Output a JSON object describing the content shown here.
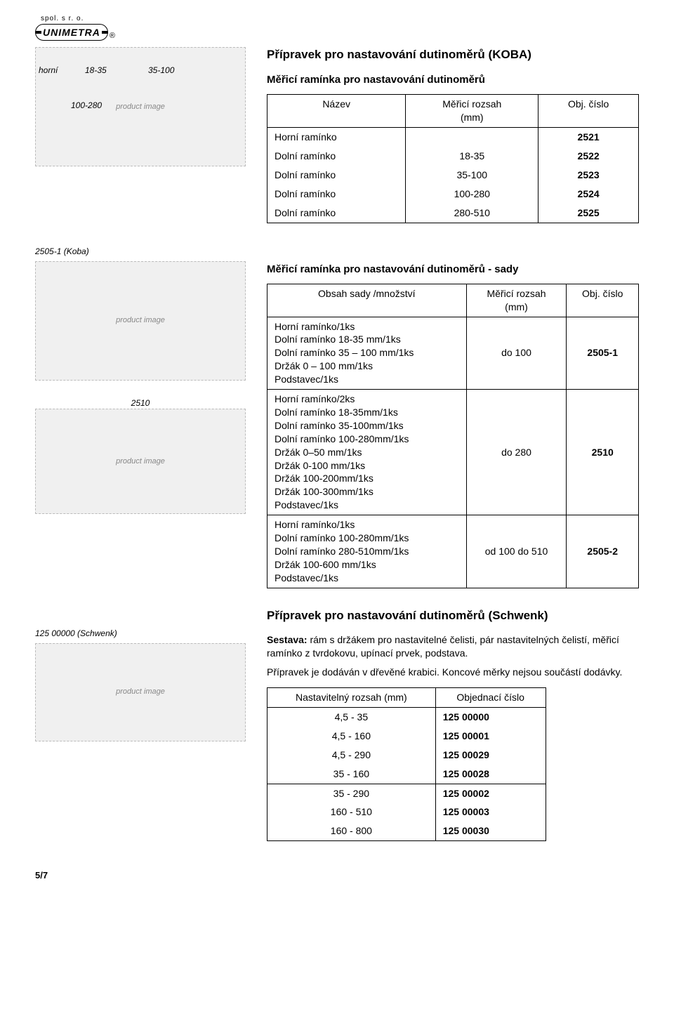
{
  "logo": {
    "top": "spol. s r. o.",
    "main": "UNIMETRA",
    "reg": "®"
  },
  "image_labels": {
    "horni": "horní",
    "r1": "18-35",
    "r2": "35-100",
    "r3": "100-280"
  },
  "section1": {
    "title": "Přípravek pro nastavování dutinoměrů (KOBA)",
    "subtitle": "Měřicí ramínka pro nastavování dutinoměrů",
    "head": {
      "c1": "Název",
      "c2a": "Měřicí rozsah",
      "c2b": "(mm)",
      "c3": "Obj. číslo"
    },
    "rows": [
      {
        "name": "Horní ramínko",
        "range": "",
        "num": "2521"
      },
      {
        "name": "Dolní ramínko",
        "range": "18-35",
        "num": "2522"
      },
      {
        "name": "Dolní ramínko",
        "range": "35-100",
        "num": "2523"
      },
      {
        "name": "Dolní ramínko",
        "range": "100-280",
        "num": "2524"
      },
      {
        "name": "Dolní ramínko",
        "range": "280-510",
        "num": "2525"
      }
    ]
  },
  "section2": {
    "caption1": "2505-1 (Koba)",
    "caption2": "2510",
    "title": "Měřicí ramínka pro nastavování dutinoměrů - sady",
    "head": {
      "c1": "Obsah sady /množství",
      "c2a": "Měřicí rozsah",
      "c2b": "(mm)",
      "c3": "Obj. číslo"
    },
    "groups": [
      {
        "lines": [
          "Horní ramínko/1ks",
          "Dolní ramínko 18-35 mm/1ks",
          "Dolní ramínko 35 – 100 mm/1ks",
          "Držák 0 – 100 mm/1ks",
          "Podstavec/1ks"
        ],
        "range": "do 100",
        "num": "2505-1"
      },
      {
        "lines": [
          "Horní ramínko/2ks",
          "Dolní ramínko 18-35mm/1ks",
          "Dolní ramínko 35-100mm/1ks",
          "Dolní ramínko 100-280mm/1ks",
          "Držák 0–50 mm/1ks",
          "Držák 0-100 mm/1ks",
          "Držák 100-200mm/1ks",
          "Držák 100-300mm/1ks",
          "Podstavec/1ks"
        ],
        "range": "do 280",
        "num": "2510"
      },
      {
        "lines": [
          "Horní ramínko/1ks",
          "Dolní ramínko 100-280mm/1ks",
          "Dolní ramínko 280-510mm/1ks",
          "Držák 100-600 mm/1ks",
          "Podstavec/1ks"
        ],
        "range": "od 100 do 510",
        "num": "2505-2"
      }
    ]
  },
  "section3": {
    "caption": "125 00000 (Schwenk)",
    "title": "Přípravek pro nastavování dutinoměrů (Schwenk)",
    "desc_label": "Sestava:",
    "desc_body": " rám s držákem pro nastavitelné čelisti, pár nastavitelných čelistí, měřicí ramínko z tvrdokovu, upínací prvek, podstava.",
    "desc_line2": "Přípravek je dodáván v dřevěné krabici. Koncové měrky nejsou součástí dodávky.",
    "head": {
      "c1": "Nastavitelný rozsah (mm)",
      "c2": "Objednací číslo"
    },
    "group1": [
      {
        "range": "4,5 - 35",
        "num": "125 00000"
      },
      {
        "range": "4,5 - 160",
        "num": "125 00001"
      },
      {
        "range": "4,5 - 290",
        "num": "125 00029"
      },
      {
        "range": "35 - 160",
        "num": "125 00028"
      }
    ],
    "group2": [
      {
        "range": "35 - 290",
        "num": "125 00002"
      },
      {
        "range": "160 - 510",
        "num": "125 00003"
      },
      {
        "range": "160 - 800",
        "num": "125 00030"
      }
    ]
  },
  "page_number": "5/7",
  "img_alt": "product image"
}
